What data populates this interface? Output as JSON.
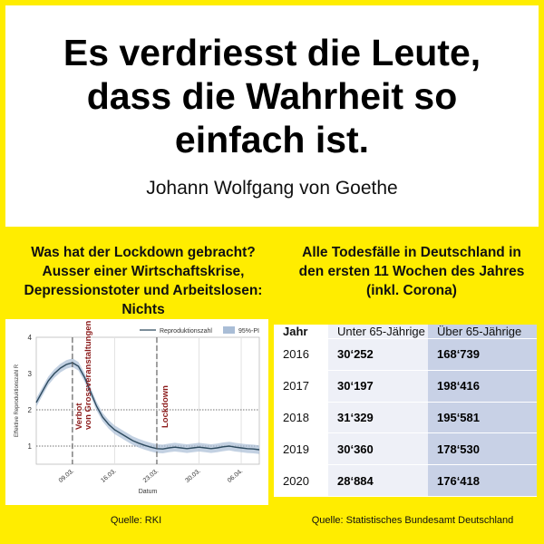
{
  "quote": {
    "lines": [
      "Es verdriesst die Leute,",
      "dass die Wahrheit so",
      "einfach ist."
    ],
    "author": "Johann Wolfgang von Goethe"
  },
  "left_heading": [
    "Was hat der Lockdown gebracht?",
    "Ausser einer Wirtschaftskrise,",
    "Depressionstoter und Arbeitslosen: Nichts"
  ],
  "right_heading": [
    "Alle Todesfälle in Deutschland in",
    "den ersten 11 Wochen des Jahres",
    "(inkl. Corona)"
  ],
  "chart_data": {
    "type": "line",
    "legend": [
      "Reproduktionszahl",
      "95%-PI"
    ],
    "xlabel": "Datum",
    "ylabel": "Effektive Reproduktionszahl R",
    "x_ticks": [
      "09.03.",
      "16.03.",
      "23.03.",
      "30.03.",
      "06.04."
    ],
    "y_ticks": [
      "1",
      "2",
      "3",
      "4"
    ],
    "ylim": [
      0.5,
      4
    ],
    "x": [
      "03.03.",
      "04.03.",
      "05.03.",
      "06.03.",
      "07.03.",
      "08.03.",
      "09.03.",
      "10.03.",
      "11.03.",
      "12.03.",
      "13.03.",
      "14.03.",
      "15.03.",
      "16.03.",
      "17.03.",
      "18.03.",
      "19.03.",
      "20.03.",
      "21.03.",
      "22.03.",
      "23.03.",
      "24.03.",
      "25.03.",
      "26.03.",
      "27.03.",
      "28.03.",
      "29.03.",
      "30.03.",
      "31.03.",
      "01.04.",
      "02.04.",
      "03.04.",
      "04.04.",
      "05.04.",
      "06.04.",
      "07.04.",
      "08.04.",
      "09.04."
    ],
    "values": [
      2.2,
      2.5,
      2.8,
      3.0,
      3.15,
      3.25,
      3.3,
      3.2,
      2.9,
      2.5,
      2.1,
      1.8,
      1.6,
      1.45,
      1.35,
      1.25,
      1.15,
      1.08,
      1.02,
      0.97,
      0.93,
      0.92,
      0.95,
      0.97,
      0.95,
      0.93,
      0.95,
      0.97,
      0.95,
      0.93,
      0.95,
      0.98,
      1.0,
      0.97,
      0.95,
      0.93,
      0.92,
      0.9
    ],
    "annotations": [
      {
        "text": "Verbot von Grossveranstaltungen",
        "x": "09.03."
      },
      {
        "text": "Lockdown",
        "x": "23.03."
      }
    ],
    "reference_lines": [
      {
        "y": 1
      },
      {
        "y": 2
      }
    ],
    "source": "Quelle: RKI"
  },
  "table": {
    "headers": [
      "Jahr",
      "Unter 65-Jährige",
      "Über 65-Jährige"
    ],
    "rows": [
      [
        "2016",
        "30‘252",
        "168‘739"
      ],
      [
        "2017",
        "30‘197",
        "198‘416"
      ],
      [
        "2018",
        "31‘329",
        "195‘581"
      ],
      [
        "2019",
        "30‘360",
        "178‘530"
      ],
      [
        "2020",
        "28‘884",
        "176‘418"
      ]
    ],
    "source": "Quelle: Statistisches Bundesamt Deutschland"
  },
  "colors": {
    "background": "#ffed00",
    "line": "#2d4a5e",
    "band": "#a9bdd6",
    "annotation": "#8b1a1a"
  }
}
